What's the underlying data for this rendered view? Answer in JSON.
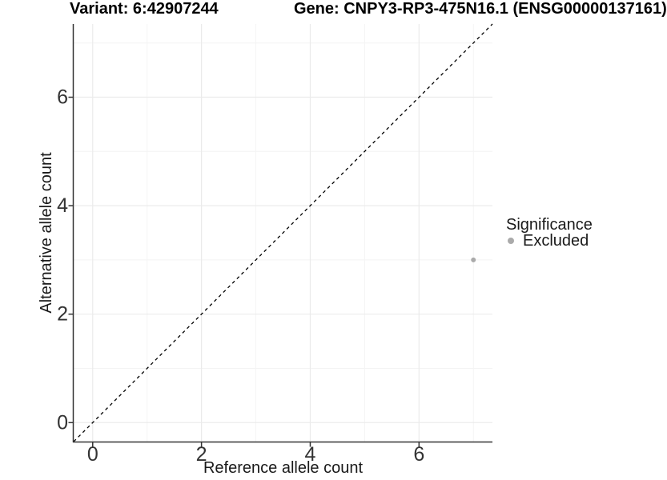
{
  "header": {
    "variant_title": "Variant: 6:42907244",
    "gene_title": "Gene: CNPY3-RP3-475N16.1 (ENSG00000137161)"
  },
  "chart_data": {
    "type": "scatter",
    "xlabel": "Reference allele count",
    "ylabel": "Alternative allele count",
    "xlim": [
      -0.35,
      7.35
    ],
    "ylim": [
      -0.35,
      7.35
    ],
    "x_ticks": [
      0,
      2,
      4,
      6
    ],
    "y_ticks": [
      0,
      2,
      4,
      6
    ],
    "x_minor_ticks": [
      1,
      3,
      5,
      7
    ],
    "y_minor_ticks": [
      1,
      3,
      5,
      7
    ],
    "grid": true,
    "identity_line": {
      "style": "dashed",
      "color": "#000000"
    },
    "series": [
      {
        "name": "Excluded",
        "color": "#aaaaaa",
        "points": [
          {
            "x": 7,
            "y": 3
          }
        ]
      }
    ],
    "legend": {
      "title": "Significance",
      "position": "right",
      "entries": [
        {
          "label": "Excluded",
          "color": "#aaaaaa"
        }
      ]
    },
    "colors": {
      "axis_line": "#333333",
      "tick_mark": "#333333",
      "tick_text": "#333333",
      "axis_title_text": "#1a1a1a",
      "grid_major": "#ebebeb",
      "grid_minor": "#f4f4f4",
      "background": "#ffffff"
    }
  }
}
